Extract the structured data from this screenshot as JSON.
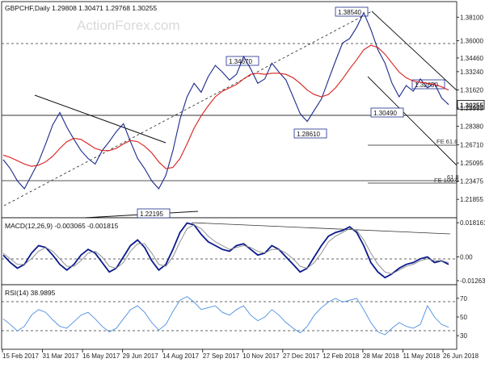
{
  "watermark": "ActionForex.com",
  "chart_data": [
    {
      "type": "line",
      "title": "GBPCHF,Daily  1.29808 1.30471 1.29768 1.30255",
      "ylim": [
        1.205,
        1.392
      ],
      "y_ticks": [
        "1.38100",
        "1.36000",
        "1.34460",
        "1.33240",
        "1.31620",
        "1.30255",
        "1.29999",
        "1.28380",
        "1.26710",
        "1.25095",
        "1.23475",
        "1.21855"
      ],
      "y_tick_values": [
        1.381,
        1.36,
        1.3446,
        1.3324,
        1.3162,
        1.30255,
        1.29999,
        1.2838,
        1.2671,
        1.25095,
        1.23475,
        1.21855
      ],
      "x_ticks": [
        "15 Feb 2017",
        "31 Mar 2017",
        "16 May 2017",
        "29 Jun 2017",
        "14 Aug 2017",
        "27 Sep 2017",
        "10 Nov 2017",
        "27 Dec 2017",
        "12 Feb 2018",
        "28 Mar 2018",
        "11 May 2018",
        "26 Jun 2018"
      ],
      "series": [
        {
          "values": [
            1.254,
            1.246,
            1.235,
            1.228,
            1.24,
            1.252,
            1.268,
            1.285,
            1.296,
            1.283,
            1.272,
            1.262,
            1.255,
            1.25,
            1.262,
            1.27,
            1.279,
            1.286,
            1.27,
            1.255,
            1.246,
            1.235,
            1.228,
            1.24,
            1.262,
            1.29,
            1.31,
            1.322,
            1.314,
            1.328,
            1.338,
            1.332,
            1.325,
            1.33,
            1.346,
            1.335,
            1.322,
            1.326,
            1.34,
            1.332,
            1.325,
            1.31,
            1.295,
            1.288,
            1.298,
            1.308,
            1.325,
            1.342,
            1.358,
            1.362,
            1.372,
            1.385,
            1.37,
            1.352,
            1.34,
            1.322,
            1.31,
            1.32,
            1.315,
            1.326,
            1.318,
            1.322,
            1.309,
            1.303
          ]
        },
        {
          "values": [
            1.258,
            1.256,
            1.253,
            1.25,
            1.248,
            1.249,
            1.252,
            1.257,
            1.264,
            1.27,
            1.273,
            1.272,
            1.268,
            1.264,
            1.262,
            1.262,
            1.264,
            1.268,
            1.271,
            1.27,
            1.266,
            1.26,
            1.252,
            1.246,
            1.247,
            1.255,
            1.268,
            1.282,
            1.293,
            1.302,
            1.31,
            1.315,
            1.318,
            1.321,
            1.326,
            1.33,
            1.331,
            1.33,
            1.331,
            1.331,
            1.33,
            1.327,
            1.322,
            1.316,
            1.312,
            1.31,
            1.312,
            1.318,
            1.326,
            1.335,
            1.343,
            1.352,
            1.356,
            1.354,
            1.348,
            1.34,
            1.332,
            1.327,
            1.324,
            1.323,
            1.322,
            1.321,
            1.319,
            1.316
          ]
        }
      ],
      "annotations": [
        {
          "text": "1.38540",
          "y": 1.3854
        },
        {
          "text": "1.36000",
          "y": 1.36
        },
        {
          "text": "1.34670",
          "y": 1.3467
        },
        {
          "text": "1.32650",
          "y": 1.3265
        },
        {
          "text": "1.30490",
          "y": 1.3049
        },
        {
          "text": "1.30255",
          "y": 1.30255
        },
        {
          "text": "1.28610",
          "y": 1.2861
        },
        {
          "text": "1.22195",
          "y": 1.22195
        },
        {
          "text": "FE 61.8",
          "y": 1.278
        },
        {
          "text": "61.8",
          "y": 1.251
        },
        {
          "text": "FE 100.0",
          "y": 1.2475
        }
      ]
    },
    {
      "type": "line",
      "title": "MACD(12,26,9) -0.003065 -0.001815",
      "ylim": [
        -0.0135,
        0.0195
      ],
      "y_ticks": [
        "0.018161",
        "0.00",
        "-0.012637"
      ],
      "y_tick_values": [
        0.018161,
        0.0,
        -0.012637
      ],
      "series": [
        {
          "values": [
            0.001,
            -0.003,
            -0.006,
            -0.004,
            0.002,
            0.006,
            0.005,
            0.001,
            -0.004,
            -0.007,
            -0.004,
            0.001,
            0.004,
            0.002,
            -0.003,
            -0.008,
            -0.006,
            0.0,
            0.006,
            0.009,
            0.005,
            -0.002,
            -0.007,
            -0.004,
            0.004,
            0.013,
            0.018,
            0.017,
            0.012,
            0.008,
            0.006,
            0.004,
            0.003,
            0.006,
            0.007,
            0.004,
            0.001,
            0.002,
            0.006,
            0.004,
            0.0,
            -0.004,
            -0.008,
            -0.006,
            0.0,
            0.006,
            0.011,
            0.013,
            0.014,
            0.016,
            0.013,
            0.006,
            -0.003,
            -0.008,
            -0.011,
            -0.009,
            -0.006,
            -0.004,
            -0.003,
            -0.001,
            0.0,
            -0.003,
            -0.002,
            -0.004
          ]
        },
        {
          "values": [
            0.002,
            -0.001,
            -0.004,
            -0.004,
            -0.001,
            0.003,
            0.005,
            0.003,
            -0.001,
            -0.005,
            -0.005,
            -0.002,
            0.002,
            0.003,
            0.0,
            -0.005,
            -0.006,
            -0.003,
            0.003,
            0.007,
            0.007,
            0.002,
            -0.004,
            -0.005,
            0.0,
            0.008,
            0.015,
            0.017,
            0.015,
            0.011,
            0.008,
            0.006,
            0.004,
            0.005,
            0.006,
            0.005,
            0.003,
            0.002,
            0.004,
            0.004,
            0.002,
            -0.001,
            -0.005,
            -0.006,
            -0.003,
            0.002,
            0.008,
            0.011,
            0.013,
            0.015,
            0.014,
            0.009,
            0.002,
            -0.004,
            -0.008,
            -0.009,
            -0.007,
            -0.005,
            -0.004,
            -0.002,
            -0.001,
            -0.002,
            -0.002,
            -0.003
          ]
        }
      ]
    },
    {
      "type": "line",
      "title": "RSI(14) 38.9895",
      "ylim": [
        18,
        82
      ],
      "y_ticks": [
        "70",
        "50",
        "30"
      ],
      "y_tick_values": [
        70,
        50,
        30
      ],
      "series": [
        {
          "values": [
            48,
            42,
            35,
            40,
            52,
            58,
            55,
            47,
            40,
            38,
            45,
            52,
            55,
            48,
            40,
            34,
            38,
            48,
            58,
            62,
            55,
            44,
            36,
            42,
            56,
            68,
            72,
            66,
            58,
            60,
            62,
            55,
            52,
            58,
            62,
            52,
            46,
            50,
            58,
            52,
            44,
            38,
            33,
            40,
            52,
            60,
            66,
            70,
            66,
            68,
            70,
            58,
            44,
            34,
            31,
            38,
            44,
            40,
            38,
            42,
            62,
            50,
            42,
            39
          ]
        }
      ]
    }
  ]
}
